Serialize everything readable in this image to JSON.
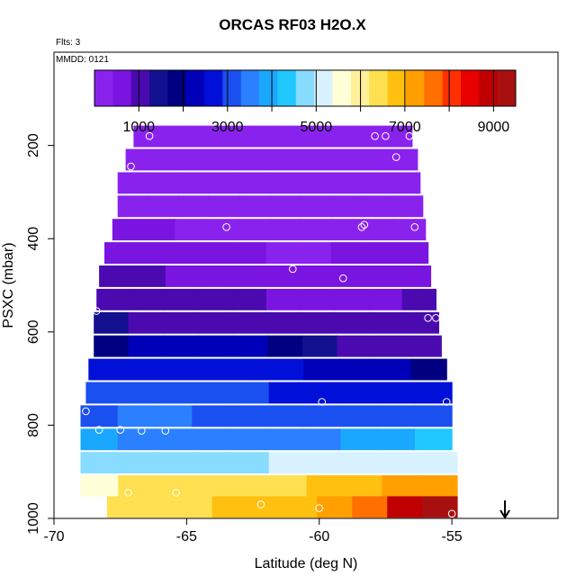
{
  "title": "ORCAS RF03 H2O.X",
  "flights_label": "Flts: 3",
  "date_label": "MMDD: 0121",
  "chart_data": {
    "type": "heatmap",
    "xlabel": "Latitude (deg N)",
    "ylabel": "PSXC (mbar)",
    "xlim": [
      -70,
      -51
    ],
    "ylim": [
      1000,
      0
    ],
    "x_ticks": [
      -70,
      -65,
      -60,
      -55
    ],
    "y_ticks": [
      200,
      400,
      600,
      800,
      1000
    ],
    "colorbar": {
      "min": 0,
      "max": 9500,
      "tick_values": [
        1000,
        3000,
        5000,
        7000,
        9000
      ],
      "colors": [
        "#8a22ee",
        "#7a14e0",
        "#4a0ab0",
        "#12108e",
        "#000080",
        "#0000b8",
        "#0010d8",
        "#1a50f0",
        "#2a80ff",
        "#1aa8ff",
        "#20c8ff",
        "#88dcff",
        "#d8f2ff",
        "#ffffd8",
        "#fff09a",
        "#ffe050",
        "#ffc010",
        "#ffa000",
        "#ff7000",
        "#ff3000",
        "#e80000",
        "#c00000",
        "#a81010"
      ]
    },
    "rows": [
      {
        "p": 180,
        "lat_min": -67.0,
        "lat_max": -56.5,
        "values": [
          300,
          300,
          300,
          300,
          300,
          300,
          300,
          300,
          300,
          300
        ]
      },
      {
        "p": 230,
        "lat_min": -67.3,
        "lat_max": -56.3,
        "values": [
          320,
          320,
          320,
          320,
          320,
          320,
          320,
          320,
          320,
          320
        ]
      },
      {
        "p": 280,
        "lat_min": -67.6,
        "lat_max": -56.2,
        "values": [
          350,
          350,
          350,
          350,
          350,
          350,
          350,
          350,
          350,
          350
        ]
      },
      {
        "p": 330,
        "lat_min": -67.6,
        "lat_max": -56.1,
        "values": [
          400,
          330,
          330,
          330,
          330,
          330,
          330,
          330,
          330,
          330
        ]
      },
      {
        "p": 380,
        "lat_min": -67.8,
        "lat_max": -56.0,
        "values": [
          450,
          420,
          380,
          380,
          350,
          350,
          350,
          350,
          380,
          400
        ]
      },
      {
        "p": 430,
        "lat_min": -68.1,
        "lat_max": -55.9,
        "values": [
          500,
          520,
          480,
          500,
          420,
          400,
          380,
          420,
          450,
          500
        ]
      },
      {
        "p": 480,
        "lat_min": -68.3,
        "lat_max": -55.8,
        "values": [
          850,
          900,
          700,
          750,
          650,
          650,
          600,
          650,
          700,
          750
        ]
      },
      {
        "p": 530,
        "lat_min": -68.4,
        "lat_max": -55.6,
        "values": [
          950,
          950,
          950,
          900,
          900,
          800,
          750,
          800,
          800,
          850
        ]
      },
      {
        "p": 580,
        "lat_min": -68.5,
        "lat_max": -55.5,
        "values": [
          1300,
          1200,
          1200,
          1200,
          1100,
          1050,
          1000,
          1000,
          950,
          950
        ]
      },
      {
        "p": 630,
        "lat_min": -68.5,
        "lat_max": -55.4,
        "values": [
          2000,
          2300,
          2300,
          2200,
          2100,
          1800,
          1500,
          1200,
          1200,
          1100
        ]
      },
      {
        "p": 680,
        "lat_min": -68.7,
        "lat_max": -55.2,
        "values": [
          2600,
          2600,
          2600,
          2600,
          2500,
          2500,
          2400,
          2300,
          2200,
          1800
        ]
      },
      {
        "p": 730,
        "lat_min": -68.8,
        "lat_max": -55.0,
        "values": [
          3000,
          3000,
          2900,
          2900,
          2900,
          2800,
          2800,
          2700,
          2600,
          2600
        ]
      },
      {
        "p": 780,
        "lat_min": -69.0,
        "lat_max": -55.0,
        "values": [
          3300,
          3400,
          3400,
          3300,
          3300,
          3200,
          3200,
          3100,
          3100,
          3000
        ]
      },
      {
        "p": 830,
        "lat_min": -69.0,
        "lat_max": -55.0,
        "values": [
          3800,
          3600,
          3700,
          3500,
          3400,
          3600,
          3700,
          3900,
          4000,
          4200
        ]
      },
      {
        "p": 880,
        "lat_min": -69.0,
        "lat_max": -54.8,
        "values": [
          4600,
          4700,
          4800,
          4900,
          4900,
          5000,
          5100,
          5200,
          5300,
          5300
        ]
      },
      {
        "p": 930,
        "lat_min": -69.0,
        "lat_max": -54.8,
        "values": [
          5400,
          6200,
          6300,
          6300,
          6400,
          6500,
          6700,
          6900,
          7100,
          7400
        ]
      },
      {
        "p": 975,
        "lat_min": -68.0,
        "lat_max": -54.8,
        "values": [
          6200,
          6500,
          6500,
          6700,
          6800,
          7000,
          7300,
          7800,
          8700,
          9300
        ]
      }
    ],
    "points": [
      {
        "lat": -66.4,
        "p": 180
      },
      {
        "lat": -57.9,
        "p": 180
      },
      {
        "lat": -57.5,
        "p": 180
      },
      {
        "lat": -56.6,
        "p": 180
      },
      {
        "lat": -67.1,
        "p": 245
      },
      {
        "lat": -57.1,
        "p": 225
      },
      {
        "lat": -68.0,
        "p": 390
      },
      {
        "lat": -63.5,
        "p": 375
      },
      {
        "lat": -58.4,
        "p": 375
      },
      {
        "lat": -58.3,
        "p": 370
      },
      {
        "lat": -56.4,
        "p": 375
      },
      {
        "lat": -61.0,
        "p": 465
      },
      {
        "lat": -59.1,
        "p": 485
      },
      {
        "lat": -68.4,
        "p": 555
      },
      {
        "lat": -55.9,
        "p": 570
      },
      {
        "lat": -55.6,
        "p": 570
      },
      {
        "lat": -59.9,
        "p": 750
      },
      {
        "lat": -55.2,
        "p": 750
      },
      {
        "lat": -68.8,
        "p": 770
      },
      {
        "lat": -68.3,
        "p": 810
      },
      {
        "lat": -67.5,
        "p": 810
      },
      {
        "lat": -66.7,
        "p": 812
      },
      {
        "lat": -65.8,
        "p": 812
      },
      {
        "lat": -67.2,
        "p": 945
      },
      {
        "lat": -65.4,
        "p": 945
      },
      {
        "lat": -62.2,
        "p": 970
      },
      {
        "lat": -60.0,
        "p": 978
      },
      {
        "lat": -55.0,
        "p": 990
      }
    ],
    "arrow_lat": -53.0
  }
}
